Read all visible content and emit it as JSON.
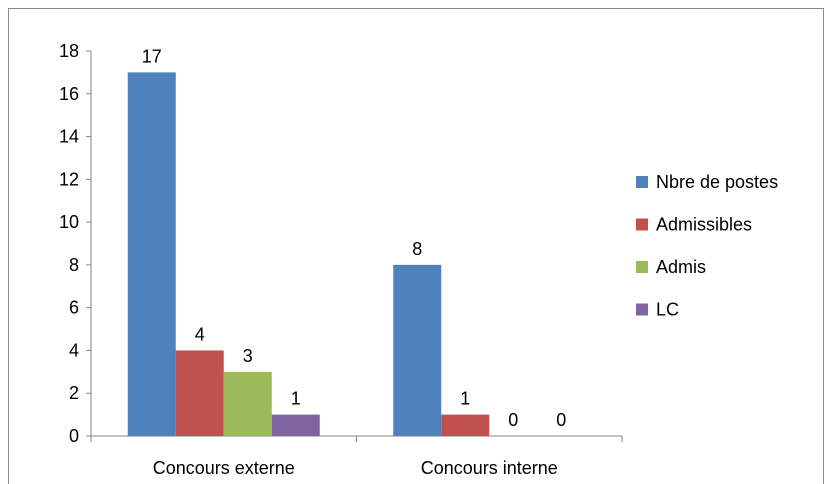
{
  "chart_data": {
    "type": "bar",
    "title": "",
    "xlabel": "",
    "ylabel": "",
    "categories": [
      "Concours externe",
      "Concours interne"
    ],
    "series": [
      {
        "name": "Nbre de postes",
        "values": [
          17,
          8
        ],
        "color": "#4f81bd"
      },
      {
        "name": "Admissibles",
        "values": [
          4,
          1
        ],
        "color": "#c0504d"
      },
      {
        "name": "Admis",
        "values": [
          3,
          0
        ],
        "color": "#9bbb59"
      },
      {
        "name": "LC",
        "values": [
          1,
          0
        ],
        "color": "#8064a2"
      }
    ],
    "ylim": [
      0,
      18
    ],
    "yticks": [
      0,
      2,
      4,
      6,
      8,
      10,
      12,
      14,
      16,
      18
    ],
    "data_labels": true,
    "grid": false,
    "legend_position": "right"
  }
}
